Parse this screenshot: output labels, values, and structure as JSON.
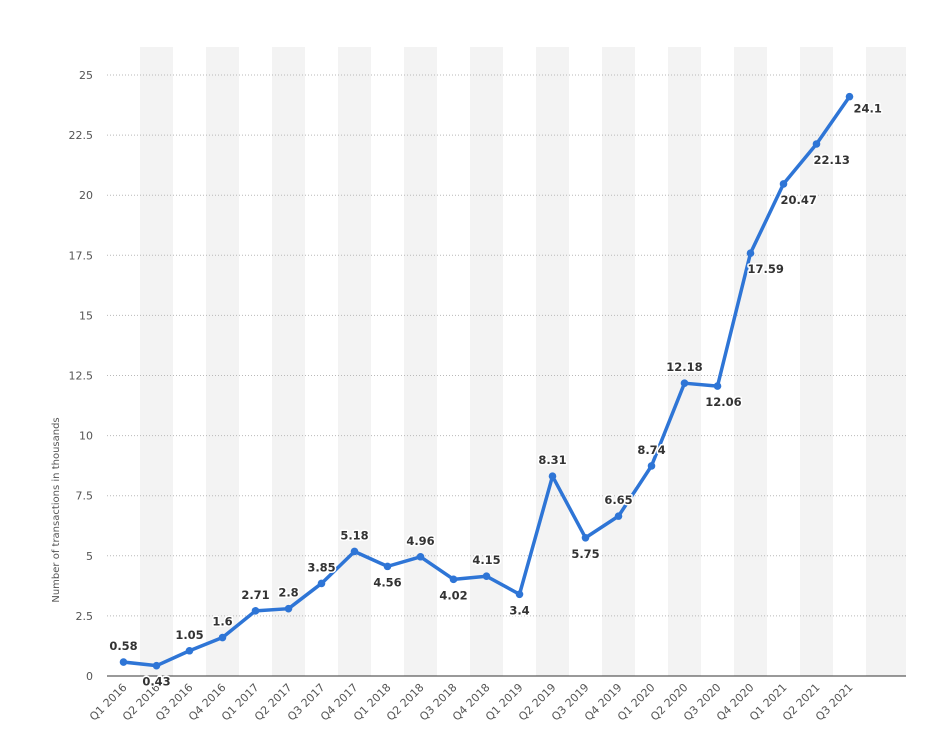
{
  "chart_data": {
    "type": "line",
    "ylabel": "Number of transactions in thousands",
    "xlabel": "",
    "ylim": [
      0,
      25
    ],
    "yticks": [
      "0",
      "2.5",
      "5",
      "7.5",
      "10",
      "12.5",
      "15",
      "17.5",
      "20",
      "22.5",
      "25"
    ],
    "grid": "horizontal dotted",
    "colors": {
      "line": "#2e75d6",
      "band": "#f3f3f3",
      "grid": "#b9b9b9",
      "axis": "#333333"
    },
    "categories": [
      "Q1 2016",
      "Q2 2016",
      "Q3 2016",
      "Q4 2016",
      "Q1 2017",
      "Q2 2017",
      "Q3 2017",
      "Q4 2017",
      "Q1 2018",
      "Q2 2018",
      "Q3 2018",
      "Q4 2018",
      "Q1 2019",
      "Q2 2019",
      "Q3 2019",
      "Q4 2019",
      "Q1 2020",
      "Q2 2020",
      "Q3 2020",
      "Q4 2020",
      "Q1 2021",
      "Q2 2021",
      "Q3 2021"
    ],
    "values": [
      0.58,
      0.43,
      1.05,
      1.6,
      2.71,
      2.8,
      3.85,
      5.18,
      4.56,
      4.96,
      4.02,
      4.15,
      3.4,
      8.31,
      5.75,
      6.65,
      8.74,
      12.18,
      12.06,
      17.59,
      20.47,
      22.13,
      24.1
    ],
    "data_labels": [
      "0.58",
      "0.43",
      "1.05",
      "1.6",
      "2.71",
      "2.8",
      "3.85",
      "5.18",
      "4.56",
      "4.96",
      "4.02",
      "4.15",
      "3.4",
      "8.31",
      "5.75",
      "6.65",
      "8.74",
      "12.18",
      "12.06",
      "17.59",
      "20.47",
      "22.13",
      "24.1"
    ]
  }
}
